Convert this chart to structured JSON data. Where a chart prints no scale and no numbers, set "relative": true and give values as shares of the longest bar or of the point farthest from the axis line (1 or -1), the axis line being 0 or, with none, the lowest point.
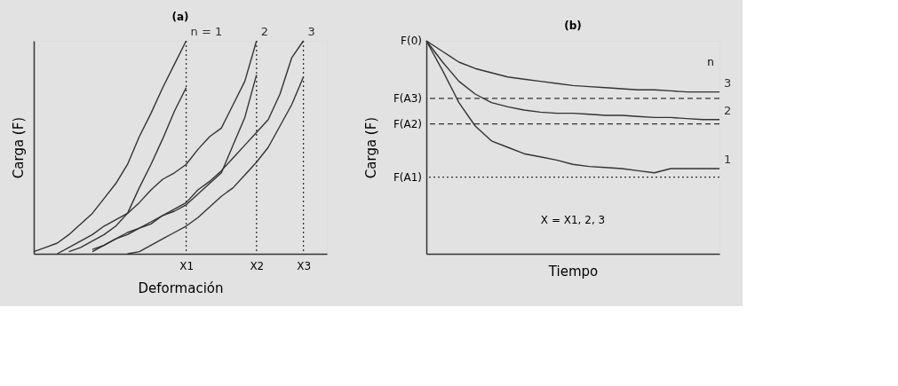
{
  "chart_data": [
    {
      "type": "line",
      "title": "(a)",
      "xlabel": "Deformación",
      "ylabel": "Carga (F)",
      "relative": true,
      "tick_labels": "x",
      "categories": [
        null,
        null,
        null,
        null,
        null,
        null,
        null,
        null,
        null,
        null,
        null,
        null,
        null,
        "X1",
        null,
        null,
        null,
        null,
        null,
        "X2",
        null,
        null,
        null,
        "X3",
        null,
        null
      ],
      "series": [
        {
          "name": "n = 1",
          "color": "#333333",
          "values": [
            0.01,
            0.03,
            0.05,
            0.09,
            0.14,
            0.19,
            0.26,
            0.33,
            0.42,
            0.55,
            0.66,
            0.78,
            0.89,
            1.0,
            null,
            null,
            null,
            null,
            null,
            null,
            null,
            null,
            null,
            null,
            null,
            null
          ]
        },
        {
          "color": "#333333",
          "values": [
            null,
            null,
            null,
            0.01,
            0.03,
            0.06,
            0.09,
            0.13,
            0.19,
            0.31,
            0.42,
            0.54,
            0.67,
            0.78,
            null,
            null,
            null,
            null,
            null,
            null,
            null,
            null,
            null,
            null,
            null,
            null
          ]
        },
        {
          "name": "2",
          "color": "#333333",
          "values": [
            null,
            null,
            0,
            0.03,
            0.06,
            0.09,
            0.13,
            0.16,
            0.19,
            0.24,
            0.3,
            0.35,
            0.38,
            0.42,
            0.49,
            0.55,
            0.59,
            0.7,
            0.81,
            1.0,
            null,
            null,
            null,
            null,
            null,
            null
          ]
        },
        {
          "color": "#333333",
          "values": [
            null,
            null,
            null,
            null,
            null,
            0.02,
            0.04,
            0.07,
            0.1,
            0.12,
            0.15,
            0.18,
            0.2,
            0.23,
            0.28,
            0.33,
            0.38,
            0.51,
            0.64,
            0.84,
            null,
            null,
            null,
            null,
            null,
            null
          ]
        },
        {
          "name": "3",
          "color": "#333333",
          "values": [
            null,
            null,
            null,
            null,
            null,
            0.01,
            0.04,
            0.07,
            0.09,
            0.12,
            0.14,
            0.18,
            0.21,
            0.24,
            0.3,
            0.34,
            0.39,
            0.45,
            0.51,
            0.57,
            0.63,
            0.75,
            0.92,
            1.0,
            null,
            null
          ]
        },
        {
          "color": "#333333",
          "values": [
            null,
            null,
            null,
            null,
            null,
            null,
            null,
            null,
            0,
            0.01,
            0.04,
            0.07,
            0.1,
            0.13,
            0.17,
            0.22,
            0.27,
            0.31,
            0.37,
            0.43,
            0.5,
            0.6,
            0.7,
            0.83,
            null,
            null
          ]
        }
      ],
      "ref_lines": [
        {
          "axis": "x",
          "value": "X1",
          "line_style": "dotted",
          "color": "#333333"
        },
        {
          "axis": "x",
          "value": "X2",
          "line_style": "dotted",
          "color": "#333333"
        },
        {
          "axis": "x",
          "value": "X3",
          "line_style": "dotted",
          "color": "#333333"
        }
      ]
    },
    {
      "type": "line",
      "title": "(b)",
      "xlabel": "Tiempo",
      "ylabel": "Carga (F)",
      "relative": true,
      "tick_labels": false,
      "categories": [
        null,
        null,
        null,
        null,
        null,
        null,
        null,
        null,
        null,
        null,
        null,
        null,
        null,
        null,
        null,
        null,
        null,
        null,
        null
      ],
      "series": [
        {
          "name": "3",
          "color": "#333333",
          "values": [
            1,
            0.95,
            0.9,
            0.87,
            0.85,
            0.83,
            0.82,
            0.81,
            0.8,
            0.79,
            0.785,
            0.78,
            0.775,
            0.77,
            0.77,
            0.765,
            0.76,
            0.76,
            0.76
          ]
        },
        {
          "name": "2",
          "color": "#333333",
          "values": [
            1,
            0.9,
            0.81,
            0.75,
            0.71,
            0.69,
            0.675,
            0.665,
            0.66,
            0.66,
            0.655,
            0.65,
            0.65,
            0.645,
            0.64,
            0.64,
            0.635,
            0.63,
            0.63
          ]
        },
        {
          "name": "1",
          "color": "#333333",
          "values": [
            1,
            0.86,
            0.71,
            0.6,
            0.53,
            0.5,
            0.47,
            0.455,
            0.44,
            0.42,
            0.41,
            0.405,
            0.4,
            0.39,
            0.38,
            0.4,
            0.4,
            0.4,
            0.4
          ]
        }
      ],
      "ref_lines": [
        {
          "axis": "y",
          "value": 0.73,
          "label": "F(A3)",
          "line_style": "dashed",
          "color": "#333333"
        },
        {
          "axis": "y",
          "value": 0.61,
          "label": "F(A2)",
          "line_style": "dashed",
          "color": "#333333"
        },
        {
          "axis": "y",
          "value": 0.36,
          "label": "F(A1)",
          "line_style": "dotted",
          "color": "#333333"
        }
      ],
      "annotations": [
        "F(0)",
        "n",
        "X = X1, 2, 3"
      ]
    }
  ]
}
